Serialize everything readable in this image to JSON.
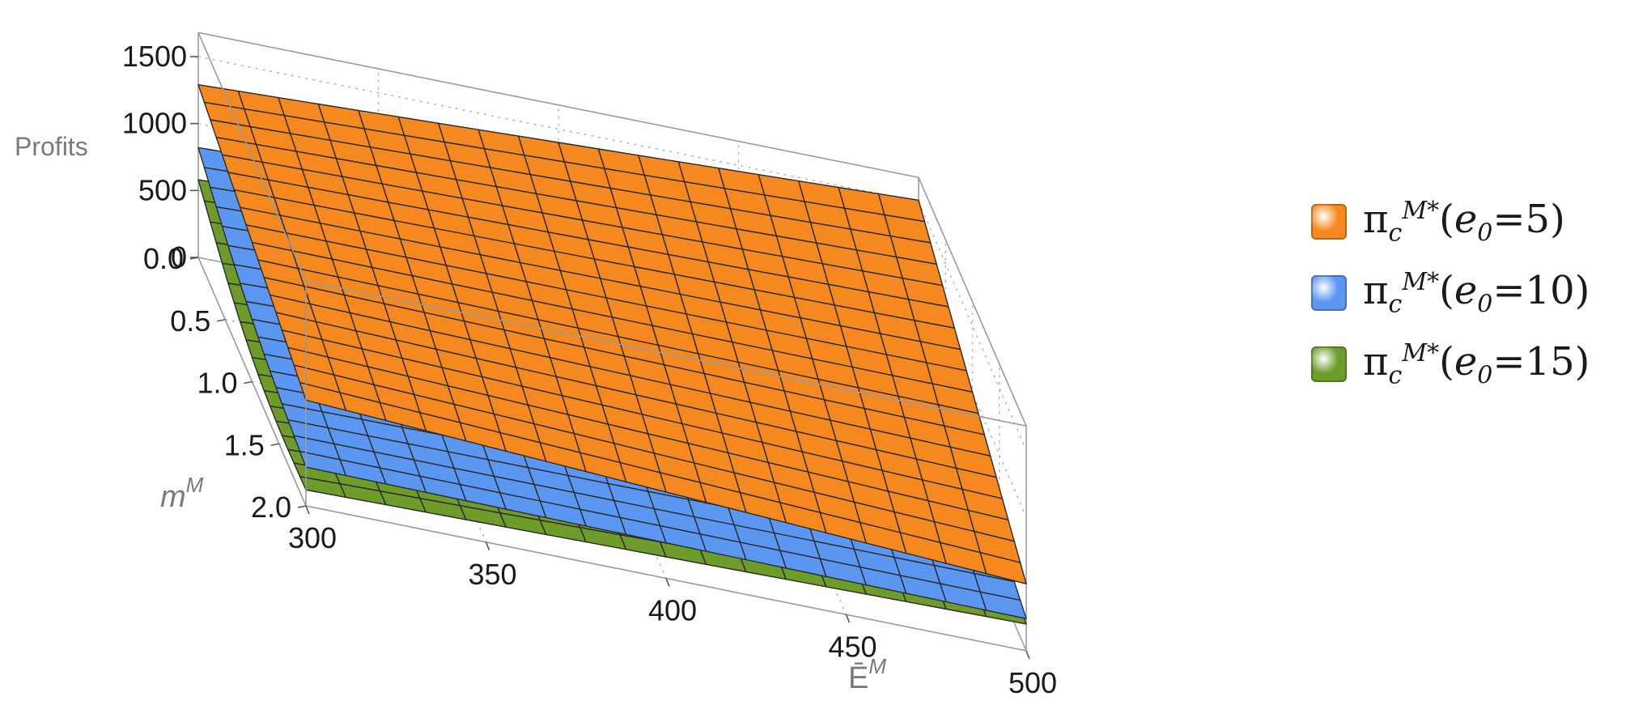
{
  "chart_data": {
    "type": "surface3d",
    "x_axis": {
      "label": "Ē",
      "label_sup": "M",
      "ticks": [
        "300",
        "350",
        "400",
        "450",
        "500"
      ],
      "range": [
        300,
        500
      ]
    },
    "y_axis": {
      "label": "m",
      "label_sup": "M",
      "ticks": [
        "0.0",
        "0.5",
        "1.0",
        "1.5",
        "2.0"
      ],
      "range": [
        0,
        2
      ]
    },
    "z_axis": {
      "label": "Profits",
      "ticks": [
        "0",
        "500",
        "1000",
        "1500"
      ],
      "range": [
        0,
        1500
      ]
    },
    "grid": true,
    "legend_position": "right",
    "series": [
      {
        "name": "e0=5",
        "color": "#f5891f",
        "corners": {
          "x300_y0": 1290,
          "x500_y0": 1510,
          "x300_y2": 790,
          "x500_y2": 500
        }
      },
      {
        "name": "e0=10",
        "color": "#5b97f0",
        "corners": {
          "x300_y0": 820,
          "x500_y0": 1010,
          "x300_y2": 290,
          "x500_y2": 240
        }
      },
      {
        "name": "e0=15",
        "color": "#6e9c2a",
        "corners": {
          "x300_y0": 580,
          "x500_y0": 830,
          "x300_y2": 120,
          "x500_y2": 200
        }
      }
    ]
  },
  "legend": [
    {
      "base": "π",
      "sub": "c",
      "sup": "M*",
      "args": "(",
      "arg_var": "e",
      "arg_sub": "0",
      "arg_val": "=5)",
      "color": "#f5891f"
    },
    {
      "base": "π",
      "sub": "c",
      "sup": "M*",
      "args": "(",
      "arg_var": "e",
      "arg_sub": "0",
      "arg_val": "=10)",
      "color": "#5b97f0"
    },
    {
      "base": "π",
      "sub": "c",
      "sup": "M*",
      "args": "(",
      "arg_var": "e",
      "arg_sub": "0",
      "arg_val": "=15)",
      "color": "#6e9c2a"
    }
  ]
}
